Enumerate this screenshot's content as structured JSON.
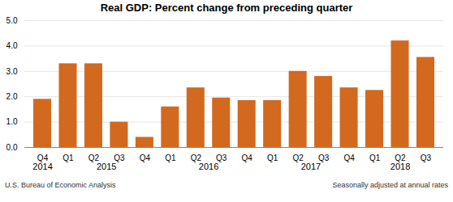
{
  "chart_data": {
    "type": "bar",
    "title": "Real GDP:  Percent change from preceding quarter",
    "categories": [
      "Q4",
      "Q1",
      "Q2",
      "Q3",
      "Q4",
      "Q1",
      "Q2",
      "Q3",
      "Q4",
      "Q1",
      "Q2",
      "Q3",
      "Q4",
      "Q1",
      "Q2",
      "Q3"
    ],
    "values": [
      1.9,
      3.3,
      3.3,
      1.0,
      0.4,
      1.6,
      2.35,
      1.95,
      1.85,
      1.85,
      3.0,
      2.8,
      2.35,
      2.25,
      4.2,
      3.55
    ],
    "color": "#D2691E",
    "ylim": [
      0,
      5
    ],
    "yticks": [
      0,
      1,
      2,
      3,
      4,
      5
    ],
    "grid": true,
    "group_labels": [
      "2014",
      "2015",
      "2016",
      "2017",
      "2018"
    ],
    "source": "U.S. Bureau of Economic Analysis",
    "note": "Seasonally adjusted at annual rates"
  }
}
